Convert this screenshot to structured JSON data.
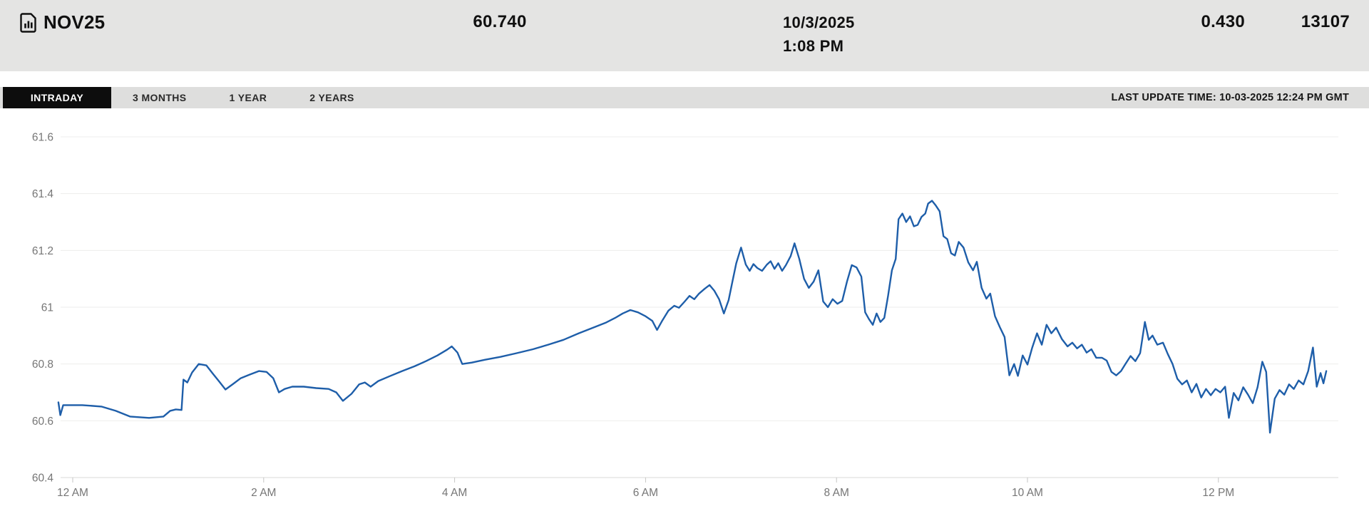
{
  "header": {
    "symbol": "NOV25",
    "price": "60.740",
    "date": "10/3/2025",
    "time": "1:08 PM",
    "change": "0.430",
    "volume": "13107"
  },
  "tabs": {
    "items": [
      {
        "label": "INTRADAY",
        "active": true
      },
      {
        "label": "3 MONTHS",
        "active": false
      },
      {
        "label": "1 YEAR",
        "active": false
      },
      {
        "label": "2 YEARS",
        "active": false
      }
    ],
    "last_update": "LAST UPDATE TIME: 10-03-2025 12:24 PM GMT"
  },
  "colors": {
    "header_bg": "#e4e4e3",
    "tab_bar_bg": "#dededd",
    "active_tab_bg": "#0d0d0d",
    "line": "#1e5ea9",
    "grid": "#ededec",
    "axis_text": "#767676"
  },
  "chart_data": {
    "type": "line",
    "title": "NOV25 intraday price",
    "x_unit": "hours_since_midnight",
    "xlim": [
      -0.2,
      13.35
    ],
    "ylim": [
      60.4,
      61.6
    ],
    "grid": true,
    "legend": "none",
    "x_ticks": [
      {
        "t": 0,
        "label": "12 AM"
      },
      {
        "t": 2,
        "label": "2 AM"
      },
      {
        "t": 4,
        "label": "4 AM"
      },
      {
        "t": 6,
        "label": "6 AM"
      },
      {
        "t": 8,
        "label": "8 AM"
      },
      {
        "t": 10,
        "label": "10 AM"
      },
      {
        "t": 12,
        "label": "12 PM"
      }
    ],
    "y_ticks": [
      61.6,
      61.4,
      61.2,
      61,
      60.8,
      60.6,
      60.4
    ],
    "line_color": "#1e5ea9",
    "series": [
      {
        "name": "NOV25",
        "points": [
          [
            -0.15,
            60.665
          ],
          [
            -0.13,
            60.62
          ],
          [
            -0.1,
            60.655
          ],
          [
            0.1,
            60.655
          ],
          [
            0.3,
            60.65
          ],
          [
            0.45,
            60.635
          ],
          [
            0.6,
            60.615
          ],
          [
            0.8,
            60.61
          ],
          [
            0.95,
            60.615
          ],
          [
            1.02,
            60.635
          ],
          [
            1.08,
            60.64
          ],
          [
            1.14,
            60.638
          ],
          [
            1.16,
            60.745
          ],
          [
            1.2,
            60.735
          ],
          [
            1.25,
            60.77
          ],
          [
            1.32,
            60.8
          ],
          [
            1.4,
            60.795
          ],
          [
            1.47,
            60.765
          ],
          [
            1.53,
            60.74
          ],
          [
            1.6,
            60.71
          ],
          [
            1.68,
            60.73
          ],
          [
            1.76,
            60.75
          ],
          [
            1.85,
            60.762
          ],
          [
            1.95,
            60.775
          ],
          [
            2.03,
            60.772
          ],
          [
            2.1,
            60.75
          ],
          [
            2.16,
            60.7
          ],
          [
            2.22,
            60.712
          ],
          [
            2.3,
            60.72
          ],
          [
            2.42,
            60.72
          ],
          [
            2.55,
            60.715
          ],
          [
            2.68,
            60.712
          ],
          [
            2.76,
            60.7
          ],
          [
            2.83,
            60.67
          ],
          [
            2.92,
            60.695
          ],
          [
            3.0,
            60.728
          ],
          [
            3.06,
            60.735
          ],
          [
            3.12,
            60.72
          ],
          [
            3.2,
            60.74
          ],
          [
            3.32,
            60.757
          ],
          [
            3.45,
            60.775
          ],
          [
            3.58,
            60.792
          ],
          [
            3.7,
            60.81
          ],
          [
            3.82,
            60.83
          ],
          [
            3.92,
            60.85
          ],
          [
            3.97,
            60.862
          ],
          [
            4.03,
            60.84
          ],
          [
            4.08,
            60.8
          ],
          [
            4.18,
            60.805
          ],
          [
            4.32,
            60.815
          ],
          [
            4.48,
            60.825
          ],
          [
            4.65,
            60.838
          ],
          [
            4.82,
            60.852
          ],
          [
            4.98,
            60.868
          ],
          [
            5.14,
            60.885
          ],
          [
            5.3,
            60.908
          ],
          [
            5.45,
            60.928
          ],
          [
            5.58,
            60.945
          ],
          [
            5.68,
            60.962
          ],
          [
            5.76,
            60.978
          ],
          [
            5.84,
            60.99
          ],
          [
            5.92,
            60.982
          ],
          [
            6.0,
            60.968
          ],
          [
            6.07,
            60.952
          ],
          [
            6.12,
            60.92
          ],
          [
            6.17,
            60.95
          ],
          [
            6.24,
            60.988
          ],
          [
            6.3,
            61.005
          ],
          [
            6.35,
            60.998
          ],
          [
            6.41,
            61.02
          ],
          [
            6.46,
            61.04
          ],
          [
            6.51,
            61.028
          ],
          [
            6.56,
            61.048
          ],
          [
            6.62,
            61.065
          ],
          [
            6.67,
            61.078
          ],
          [
            6.72,
            61.058
          ],
          [
            6.77,
            61.028
          ],
          [
            6.82,
            60.978
          ],
          [
            6.87,
            61.025
          ],
          [
            6.91,
            61.09
          ],
          [
            6.95,
            61.155
          ],
          [
            7.0,
            61.21
          ],
          [
            7.05,
            61.15
          ],
          [
            7.09,
            61.128
          ],
          [
            7.13,
            61.152
          ],
          [
            7.17,
            61.138
          ],
          [
            7.22,
            61.128
          ],
          [
            7.27,
            61.15
          ],
          [
            7.31,
            61.162
          ],
          [
            7.35,
            61.135
          ],
          [
            7.39,
            61.155
          ],
          [
            7.43,
            61.128
          ],
          [
            7.47,
            61.148
          ],
          [
            7.52,
            61.18
          ],
          [
            7.56,
            61.225
          ],
          [
            7.61,
            61.17
          ],
          [
            7.66,
            61.1
          ],
          [
            7.71,
            61.068
          ],
          [
            7.76,
            61.09
          ],
          [
            7.81,
            61.13
          ],
          [
            7.86,
            61.02
          ],
          [
            7.91,
            61.0
          ],
          [
            7.96,
            61.028
          ],
          [
            8.01,
            61.012
          ],
          [
            8.06,
            61.022
          ],
          [
            8.11,
            61.09
          ],
          [
            8.16,
            61.148
          ],
          [
            8.21,
            61.14
          ],
          [
            8.26,
            61.108
          ],
          [
            8.3,
            60.982
          ],
          [
            8.34,
            60.958
          ],
          [
            8.38,
            60.938
          ],
          [
            8.42,
            60.978
          ],
          [
            8.46,
            60.948
          ],
          [
            8.5,
            60.962
          ],
          [
            8.54,
            61.04
          ],
          [
            8.58,
            61.13
          ],
          [
            8.62,
            61.17
          ],
          [
            8.65,
            61.31
          ],
          [
            8.69,
            61.33
          ],
          [
            8.73,
            61.3
          ],
          [
            8.77,
            61.32
          ],
          [
            8.81,
            61.285
          ],
          [
            8.85,
            61.29
          ],
          [
            8.89,
            61.318
          ],
          [
            8.93,
            61.33
          ],
          [
            8.96,
            61.365
          ],
          [
            9.0,
            61.375
          ],
          [
            9.04,
            61.358
          ],
          [
            9.08,
            61.338
          ],
          [
            9.12,
            61.25
          ],
          [
            9.16,
            61.24
          ],
          [
            9.2,
            61.19
          ],
          [
            9.24,
            61.182
          ],
          [
            9.28,
            61.23
          ],
          [
            9.33,
            61.21
          ],
          [
            9.38,
            61.158
          ],
          [
            9.43,
            61.13
          ],
          [
            9.47,
            61.16
          ],
          [
            9.52,
            61.068
          ],
          [
            9.57,
            61.03
          ],
          [
            9.61,
            61.048
          ],
          [
            9.66,
            60.968
          ],
          [
            9.71,
            60.93
          ],
          [
            9.76,
            60.895
          ],
          [
            9.81,
            60.76
          ],
          [
            9.86,
            60.8
          ],
          [
            9.9,
            60.758
          ],
          [
            9.95,
            60.83
          ],
          [
            10.0,
            60.798
          ],
          [
            10.05,
            60.858
          ],
          [
            10.1,
            60.908
          ],
          [
            10.15,
            60.868
          ],
          [
            10.2,
            60.938
          ],
          [
            10.25,
            60.908
          ],
          [
            10.3,
            60.928
          ],
          [
            10.36,
            60.888
          ],
          [
            10.42,
            60.862
          ],
          [
            10.47,
            60.875
          ],
          [
            10.52,
            60.855
          ],
          [
            10.57,
            60.868
          ],
          [
            10.62,
            60.84
          ],
          [
            10.67,
            60.852
          ],
          [
            10.72,
            60.822
          ],
          [
            10.78,
            60.822
          ],
          [
            10.83,
            60.812
          ],
          [
            10.88,
            60.772
          ],
          [
            10.93,
            60.76
          ],
          [
            10.98,
            60.775
          ],
          [
            11.03,
            60.802
          ],
          [
            11.08,
            60.828
          ],
          [
            11.13,
            60.81
          ],
          [
            11.18,
            60.838
          ],
          [
            11.23,
            60.948
          ],
          [
            11.27,
            60.885
          ],
          [
            11.31,
            60.9
          ],
          [
            11.36,
            60.868
          ],
          [
            11.42,
            60.875
          ],
          [
            11.47,
            60.835
          ],
          [
            11.52,
            60.8
          ],
          [
            11.57,
            60.748
          ],
          [
            11.62,
            60.728
          ],
          [
            11.67,
            60.742
          ],
          [
            11.72,
            60.7
          ],
          [
            11.77,
            60.73
          ],
          [
            11.82,
            60.682
          ],
          [
            11.87,
            60.712
          ],
          [
            11.92,
            60.69
          ],
          [
            11.97,
            60.712
          ],
          [
            12.02,
            60.7
          ],
          [
            12.07,
            60.72
          ],
          [
            12.11,
            60.61
          ],
          [
            12.16,
            60.698
          ],
          [
            12.21,
            60.672
          ],
          [
            12.26,
            60.718
          ],
          [
            12.31,
            60.692
          ],
          [
            12.36,
            60.662
          ],
          [
            12.41,
            60.718
          ],
          [
            12.46,
            60.808
          ],
          [
            12.5,
            60.772
          ],
          [
            12.54,
            60.558
          ],
          [
            12.59,
            60.678
          ],
          [
            12.64,
            60.708
          ],
          [
            12.69,
            60.692
          ],
          [
            12.74,
            60.728
          ],
          [
            12.79,
            60.712
          ],
          [
            12.84,
            60.742
          ],
          [
            12.89,
            60.728
          ],
          [
            12.94,
            60.775
          ],
          [
            12.99,
            60.858
          ],
          [
            13.03,
            60.72
          ],
          [
            13.07,
            60.768
          ],
          [
            13.1,
            60.732
          ],
          [
            13.13,
            60.775
          ]
        ]
      }
    ]
  }
}
